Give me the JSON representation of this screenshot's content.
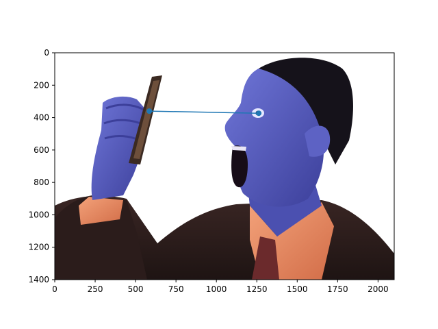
{
  "colors": {
    "line": "#1f77b4",
    "axis": "#000000",
    "background": "#ffffff"
  },
  "chart_data": {
    "type": "line",
    "title": "",
    "xlabel": "",
    "ylabel": "",
    "background_image": "photo of a man in a suit shouting at a mobile phone held in his raised hand",
    "xlim": [
      0,
      2100
    ],
    "ylim": [
      1400,
      0
    ],
    "y_inverted": true,
    "grid": false,
    "xticks": [
      0,
      250,
      500,
      750,
      1000,
      1250,
      1500,
      1750,
      2000
    ],
    "yticks": [
      0,
      200,
      400,
      600,
      800,
      1000,
      1200,
      1400
    ],
    "series": [
      {
        "x": [
          585,
          1262
        ],
        "y": [
          360,
          373
        ],
        "marker": "circle"
      }
    ]
  }
}
